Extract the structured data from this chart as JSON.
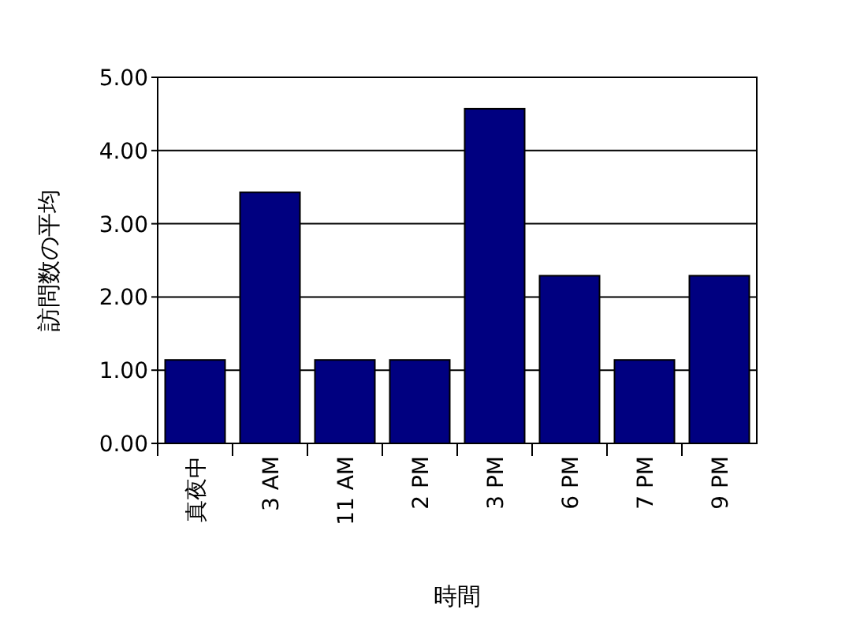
{
  "chart_data": {
    "type": "bar",
    "xlabel": "時間",
    "ylabel": "訪問数の平均",
    "categories": [
      "真夜中",
      "3 AM",
      "11 AM",
      "2 PM",
      "3 PM",
      "6 PM",
      "7 PM",
      "9 PM"
    ],
    "values": [
      1.14,
      3.43,
      1.14,
      1.14,
      4.57,
      2.29,
      1.14,
      2.29
    ],
    "color": "#000080",
    "ylim": [
      0,
      5
    ],
    "yticks": [
      {
        "value": 0,
        "label": "0.00"
      },
      {
        "value": 1,
        "label": "1.00"
      },
      {
        "value": 2,
        "label": "2.00"
      },
      {
        "value": 3,
        "label": "3.00"
      },
      {
        "value": 4,
        "label": "4.00"
      },
      {
        "value": 5,
        "label": "5.00"
      }
    ],
    "grid": "y"
  }
}
